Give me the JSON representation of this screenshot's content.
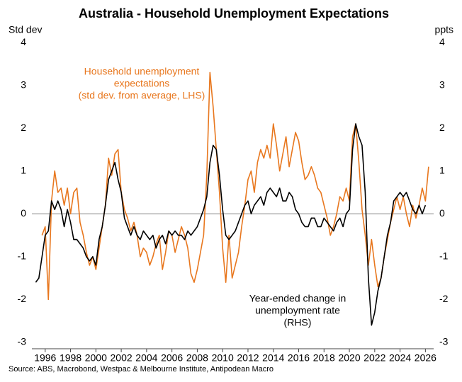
{
  "chart_data": {
    "type": "line",
    "title": "Australia - Household Unemployment Expectations",
    "y_label": "Std dev",
    "y2_label": "ppts",
    "source": "Source: ABS, Macrobond, Westpac & Melbourne Institute, Antipodean Macro",
    "xlim": [
      1994.95,
      2026.65
    ],
    "xticks": [
      1996,
      1998,
      2000,
      2002,
      2004,
      2006,
      2008,
      2010,
      2012,
      2014,
      2016,
      2018,
      2020,
      2022,
      2024,
      2026
    ],
    "ylim": [
      -3.15,
      4.1
    ],
    "yticks": [
      -3,
      -2,
      -1,
      0,
      1,
      2,
      3,
      4
    ],
    "y2lim": [
      -3.15,
      4.1
    ],
    "y2ticks": [
      -3,
      -2,
      -1,
      0,
      1,
      2,
      3,
      4
    ],
    "x": [
      1995.25,
      1995.5,
      1995.75,
      1996,
      1996.25,
      1996.5,
      1996.75,
      1997,
      1997.25,
      1997.5,
      1997.75,
      1998,
      1998.25,
      1998.5,
      1998.75,
      1999,
      1999.25,
      1999.5,
      1999.75,
      2000,
      2000.25,
      2000.5,
      2000.75,
      2001,
      2001.25,
      2001.5,
      2001.75,
      2002,
      2002.25,
      2002.5,
      2002.75,
      2003,
      2003.25,
      2003.5,
      2003.75,
      2004,
      2004.25,
      2004.5,
      2004.75,
      2005,
      2005.25,
      2005.5,
      2005.75,
      2006,
      2006.25,
      2006.5,
      2006.75,
      2007,
      2007.25,
      2007.5,
      2007.75,
      2008,
      2008.25,
      2008.5,
      2008.75,
      2009,
      2009.25,
      2009.5,
      2009.75,
      2010,
      2010.25,
      2010.5,
      2010.75,
      2011,
      2011.25,
      2011.5,
      2011.75,
      2012,
      2012.25,
      2012.5,
      2012.75,
      2013,
      2013.25,
      2013.5,
      2013.75,
      2014,
      2014.25,
      2014.5,
      2014.75,
      2015,
      2015.25,
      2015.5,
      2015.75,
      2016,
      2016.25,
      2016.5,
      2016.75,
      2017,
      2017.25,
      2017.5,
      2017.75,
      2018,
      2018.25,
      2018.5,
      2018.75,
      2019,
      2019.25,
      2019.5,
      2019.75,
      2020,
      2020.25,
      2020.5,
      2020.75,
      2021,
      2021.25,
      2021.5,
      2021.75,
      2022,
      2022.25,
      2022.5,
      2022.75,
      2023,
      2023.25,
      2023.5,
      2023.75,
      2024,
      2024.25,
      2024.5,
      2024.75,
      2025,
      2025.25,
      2025.5,
      2025.75,
      2026,
      2026.25
    ],
    "series": [
      {
        "name": "Household unemployment expectations (std dev. from average, LHS)",
        "color": "#e8771e",
        "axis": "y",
        "values": [
          null,
          null,
          -0.5,
          -0.3,
          -2.0,
          0.3,
          1.0,
          0.5,
          0.6,
          0.2,
          0.6,
          0.0,
          0.5,
          0.6,
          -0.2,
          -0.5,
          -0.9,
          -1.2,
          -1.0,
          -1.3,
          -0.8,
          -0.3,
          0.2,
          1.3,
          0.9,
          1.4,
          1.5,
          0.5,
          0.1,
          -0.1,
          -0.4,
          -0.2,
          -0.5,
          -1.0,
          -0.8,
          -0.9,
          -1.2,
          -1.0,
          -0.7,
          -0.5,
          -1.3,
          -0.9,
          -0.4,
          -0.5,
          -0.9,
          -0.6,
          -0.3,
          -0.5,
          -0.8,
          -1.4,
          -1.6,
          -1.3,
          -0.9,
          -0.5,
          0.9,
          3.3,
          2.5,
          1.5,
          0.5,
          -0.8,
          -1.6,
          -0.5,
          -1.5,
          -1.2,
          -0.9,
          -0.3,
          0.2,
          0.8,
          1.0,
          0.5,
          1.2,
          1.5,
          1.3,
          1.6,
          1.3,
          2.1,
          1.6,
          1.0,
          1.4,
          1.8,
          1.1,
          1.5,
          1.9,
          1.7,
          1.2,
          0.8,
          0.9,
          1.1,
          0.9,
          0.6,
          0.5,
          0.2,
          -0.1,
          -0.5,
          -0.3,
          0.0,
          0.4,
          0.3,
          0.6,
          0.3,
          1.8,
          2.1,
          1.2,
          0.1,
          -0.5,
          -1.2,
          -0.6,
          -1.2,
          -1.7,
          -1.5,
          -1.0,
          -0.6,
          -0.2,
          0.1,
          0.4,
          0.1,
          0.4,
          0.0,
          -0.3,
          0.2,
          -0.1,
          0.2,
          0.6,
          0.3,
          1.1
        ]
      },
      {
        "name": "Year-ended change in unemployment rate (RHS)",
        "color": "#000000",
        "axis": "y2",
        "values": [
          -1.6,
          -1.5,
          -1.0,
          -0.5,
          -0.4,
          0.3,
          0.1,
          0.3,
          0.1,
          -0.3,
          0.1,
          -0.2,
          -0.6,
          -0.6,
          -0.7,
          -0.8,
          -1.0,
          -1.1,
          -1.0,
          -1.2,
          -0.6,
          -0.3,
          0.2,
          0.8,
          1.0,
          1.2,
          0.8,
          0.5,
          -0.1,
          -0.3,
          -0.5,
          -0.3,
          -0.5,
          -0.6,
          -0.4,
          -0.5,
          -0.6,
          -0.5,
          -0.8,
          -0.6,
          -0.5,
          -0.7,
          -0.4,
          -0.5,
          -0.4,
          -0.5,
          -0.5,
          -0.6,
          -0.4,
          -0.5,
          -0.4,
          -0.3,
          -0.1,
          0.1,
          0.4,
          1.2,
          1.6,
          1.5,
          0.9,
          0.1,
          -0.5,
          -0.6,
          -0.5,
          -0.4,
          -0.2,
          0.0,
          0.2,
          0.3,
          0.0,
          0.2,
          0.3,
          0.4,
          0.2,
          0.5,
          0.6,
          0.5,
          0.4,
          0.6,
          0.3,
          0.3,
          0.5,
          0.4,
          0.1,
          0.0,
          -0.2,
          -0.3,
          -0.3,
          -0.1,
          -0.1,
          -0.3,
          -0.3,
          -0.1,
          -0.2,
          -0.3,
          -0.4,
          -0.2,
          -0.1,
          -0.3,
          0.0,
          0.1,
          1.5,
          2.1,
          1.8,
          1.6,
          0.5,
          -1.5,
          -2.6,
          -2.3,
          -1.8,
          -1.5,
          -1.0,
          -0.5,
          -0.2,
          0.3,
          0.4,
          0.5,
          0.4,
          0.5,
          0.3,
          0.1,
          0.0,
          0.2,
          0.0,
          0.2,
          null
        ]
      }
    ],
    "annotations": [
      {
        "lines": [
          "Household unemployment",
          "expectations",
          "(std dev. from average, LHS)"
        ],
        "color": "#e8771e"
      },
      {
        "lines": [
          "Year-ended change in",
          "unemployment rate",
          "(RHS)"
        ],
        "color": "#000000"
      }
    ]
  }
}
